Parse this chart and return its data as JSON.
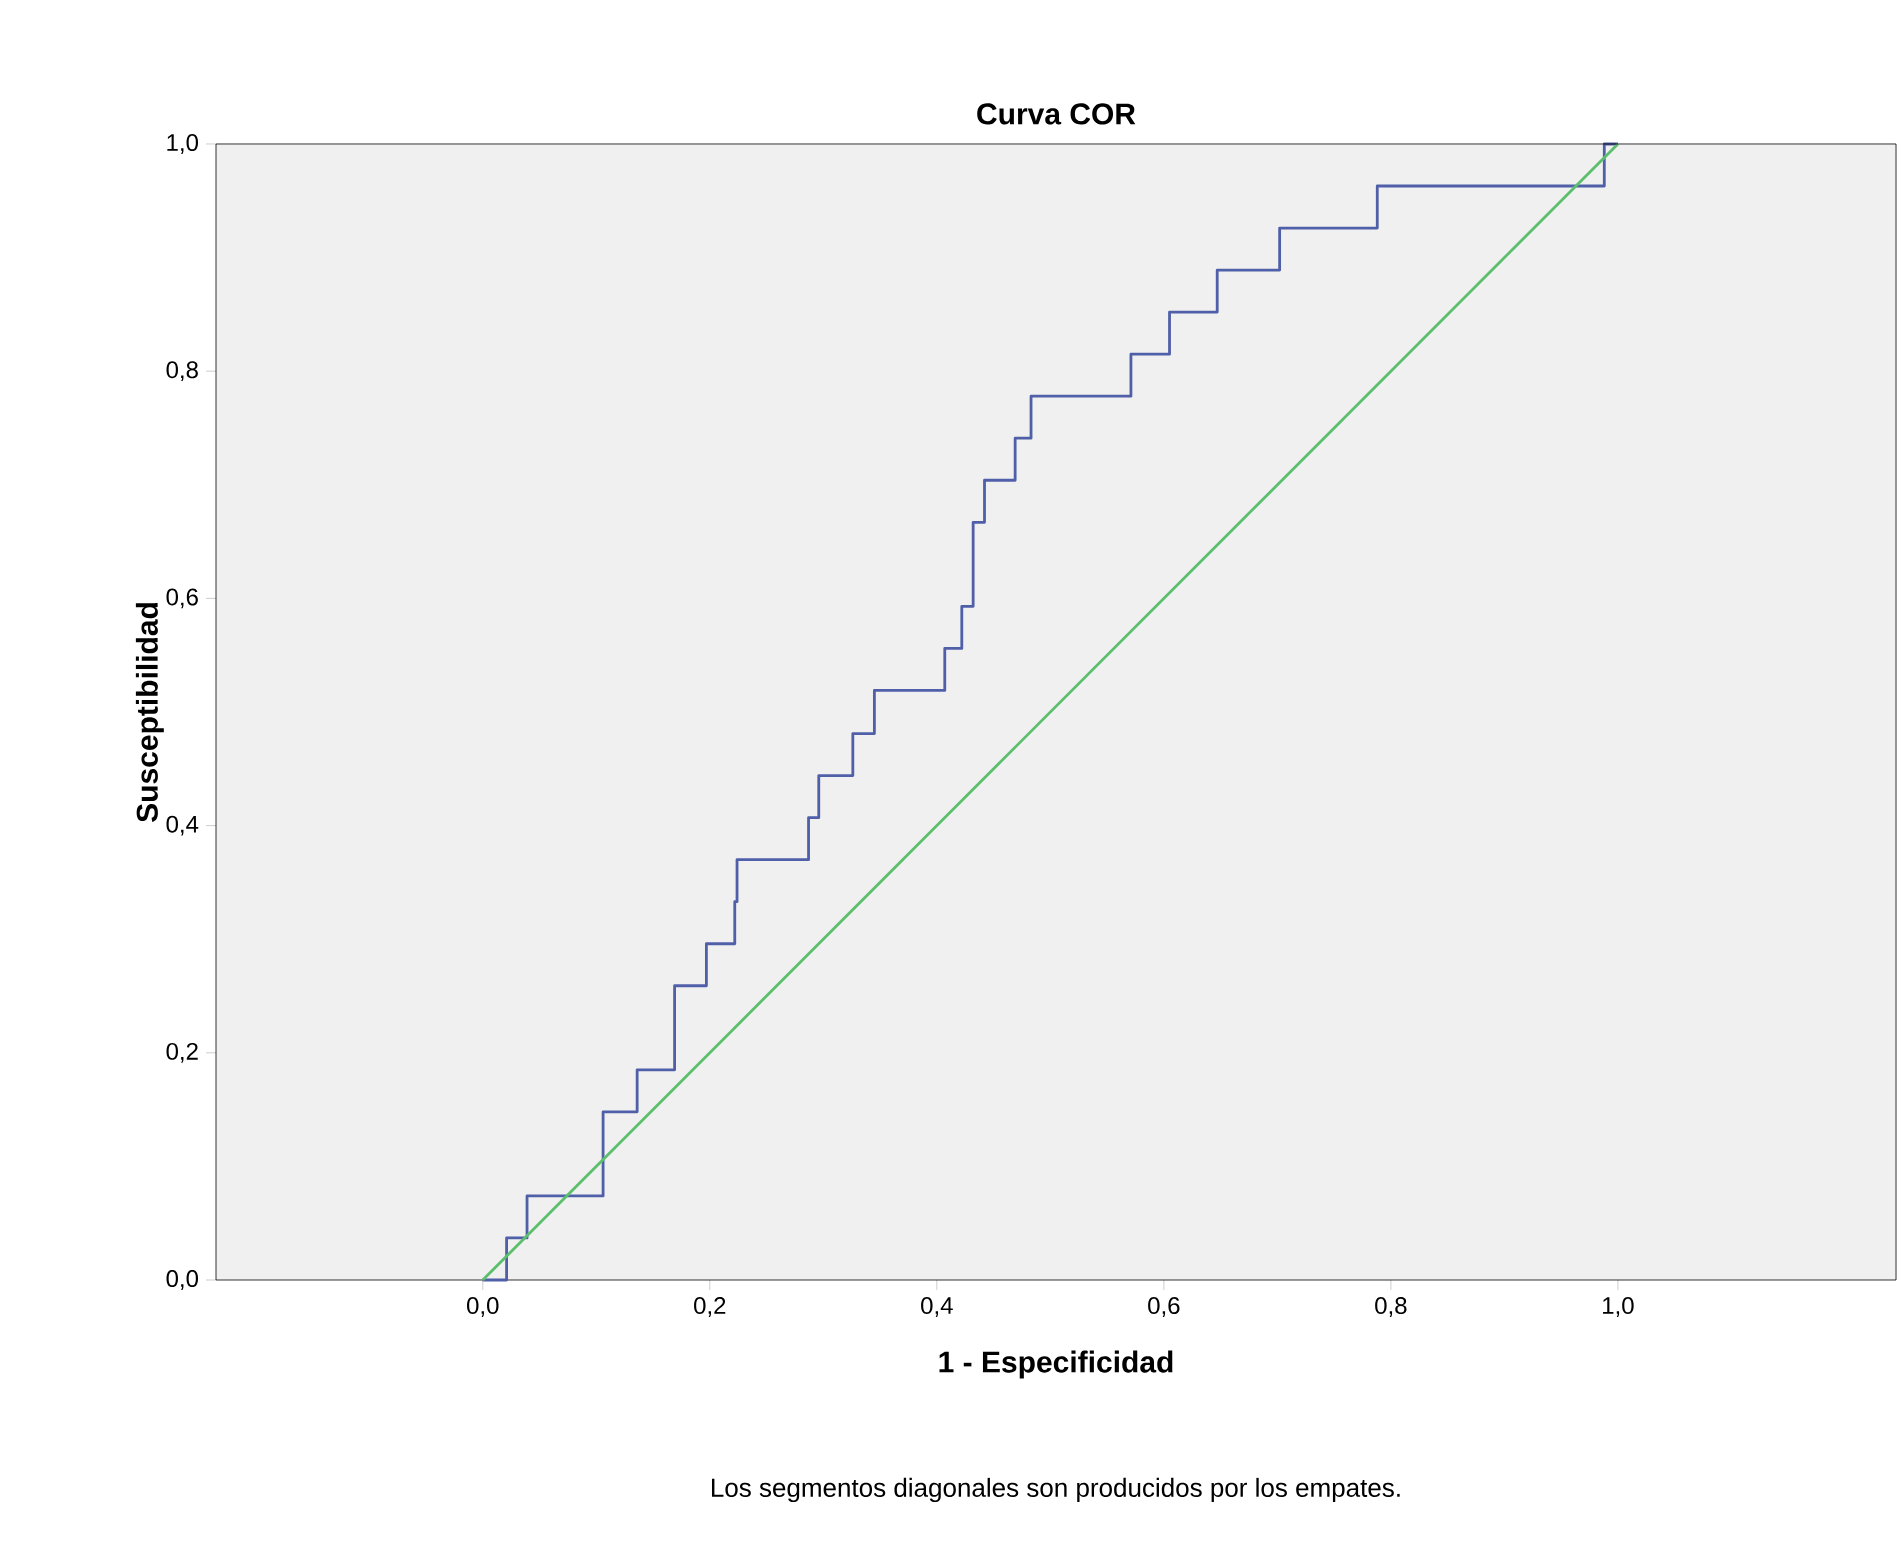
{
  "chart_data": {
    "type": "step",
    "title": "Curva COR",
    "xlabel": "1 - Especificidad",
    "ylabel": "Susceptibilidad",
    "annotations": [
      "Los segmentos diagonales son producidos por los empates."
    ],
    "xlim": [
      -0.235,
      1.245
    ],
    "ylim": [
      0,
      1
    ],
    "xticks": [
      {
        "value": 0,
        "label": "0,0"
      },
      {
        "value": 0.2,
        "label": "0,2"
      },
      {
        "value": 0.4,
        "label": "0,4"
      },
      {
        "value": 0.6,
        "label": "0,6"
      },
      {
        "value": 0.8,
        "label": "0,8"
      },
      {
        "value": 1,
        "label": "1,0"
      }
    ],
    "yticks": [
      {
        "value": 0,
        "label": "0,0"
      },
      {
        "value": 0.2,
        "label": "0,2"
      },
      {
        "value": 0.4,
        "label": "0,4"
      },
      {
        "value": 0.6,
        "label": "0,6"
      },
      {
        "value": 0.8,
        "label": "0,8"
      },
      {
        "value": 1,
        "label": "1,0"
      }
    ],
    "grid": false,
    "series": [
      {
        "color": "#4f5fa8",
        "x": [
          0,
          0.021,
          0.039,
          0.106,
          0.136,
          0.169,
          0.197,
          0.222,
          0.224,
          0.287,
          0.296,
          0.326,
          0.345,
          0.407,
          0.422,
          0.432,
          0.442,
          0.469,
          0.483,
          0.571,
          0.605,
          0.647,
          0.702,
          0.788,
          0.988,
          1.0
        ],
        "values": [
          0,
          0.037,
          0.074,
          0.148,
          0.185,
          0.259,
          0.296,
          0.333,
          0.37,
          0.407,
          0.444,
          0.481,
          0.519,
          0.556,
          0.593,
          0.667,
          0.704,
          0.741,
          0.778,
          0.815,
          0.852,
          0.889,
          0.926,
          0.963,
          1.0,
          1.0
        ]
      },
      {
        "type": "line",
        "color": "#5cbf6e",
        "x": [
          0,
          1
        ],
        "values": [
          0,
          1
        ]
      }
    ]
  }
}
